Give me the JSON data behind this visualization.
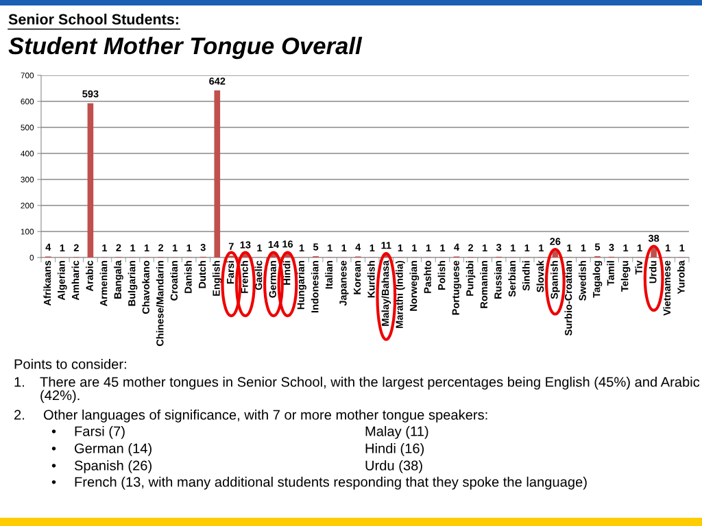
{
  "chart_data": {
    "type": "bar",
    "title": "Senior School Students:",
    "subtitle": "Student Mother Tongue Overall",
    "categories": [
      "Afrikaans",
      "Algerian",
      "Amharic",
      "Arabic",
      "Armenian",
      "Bangala",
      "Bulgarian",
      "Chavokano",
      "Chinese/Mandarin",
      "Croatian",
      "Danish",
      "Dutch",
      "English",
      "Farsi",
      "French",
      "Gaelic",
      "German",
      "Hindi",
      "Hungarian",
      "Indonesian",
      "Italian",
      "Japanese",
      "Korean",
      "Kurdish",
      "Malay/Bahasa",
      "Marathi (India)",
      "Norwegian",
      "Pashto",
      "Polish",
      "Portuguese",
      "Punjabi",
      "Romanian",
      "Russian",
      "Serbian",
      "Sindhi",
      "Slovak",
      "Spanish",
      "Surbio-Croatian",
      "Swedish",
      "Tagalog",
      "Tamil",
      "Telegu",
      "Tiv",
      "Urdu",
      "Vietnamese",
      "Yuroba"
    ],
    "values": [
      4,
      1,
      2,
      593,
      1,
      2,
      1,
      1,
      2,
      1,
      1,
      3,
      642,
      7,
      13,
      1,
      14,
      16,
      1,
      5,
      1,
      1,
      4,
      1,
      11,
      1,
      1,
      1,
      1,
      4,
      2,
      1,
      3,
      1,
      1,
      1,
      26,
      1,
      1,
      5,
      3,
      1,
      1,
      38,
      1,
      1
    ],
    "color": "#c0504d",
    "ylim": [
      0,
      700
    ],
    "yticks": [
      0,
      100,
      200,
      300,
      400,
      500,
      600,
      700
    ],
    "grid": "y",
    "data_labels": true,
    "annotations": [
      "Points to consider:",
      "1. There are 45 mother tongues in Senior School, with the largest percentages being English (45%) and Arabic (42%).",
      "2. Other languages of significance, with 7 or more mother tongue speakers:",
      "• Farsi (7)",
      "Malay (11)",
      "• German (14)",
      "Hindi (16)",
      "• Spanish (26)",
      "Urdu (38)",
      "• French (13, with many additional students responding that they spoke the language)"
    ]
  }
}
